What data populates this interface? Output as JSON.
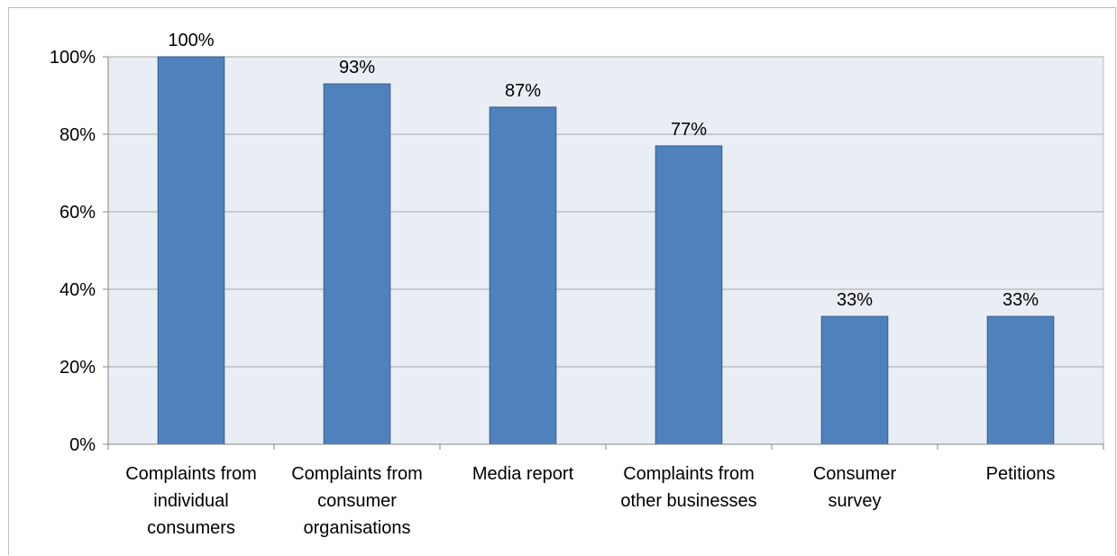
{
  "chart_data": {
    "type": "bar",
    "categories": [
      [
        "Complaints from",
        "individual",
        "consumers"
      ],
      [
        "Complaints from",
        "consumer",
        "organisations"
      ],
      [
        "Media report"
      ],
      [
        "Complaints from",
        "other businesses"
      ],
      [
        "Consumer",
        "survey"
      ],
      [
        "Petitions"
      ]
    ],
    "values": [
      100,
      93,
      87,
      77,
      33,
      33
    ],
    "data_labels": [
      "100%",
      "93%",
      "87%",
      "77%",
      "33%",
      "33%"
    ],
    "y_ticks": [
      {
        "value": 0,
        "label": "0%"
      },
      {
        "value": 20,
        "label": "20%"
      },
      {
        "value": 40,
        "label": "40%"
      },
      {
        "value": 60,
        "label": "60%"
      },
      {
        "value": 80,
        "label": "80%"
      },
      {
        "value": 100,
        "label": "100%"
      }
    ],
    "ylim": [
      0,
      100
    ],
    "grid": true,
    "title": "",
    "xlabel": "",
    "ylabel": "",
    "colors": {
      "bar_fill": "#4f81bd",
      "bar_stroke": "#385d8a",
      "plot_bg": "#e9edf4",
      "gridline": "#a6a6a6",
      "axis": "#868686"
    }
  }
}
